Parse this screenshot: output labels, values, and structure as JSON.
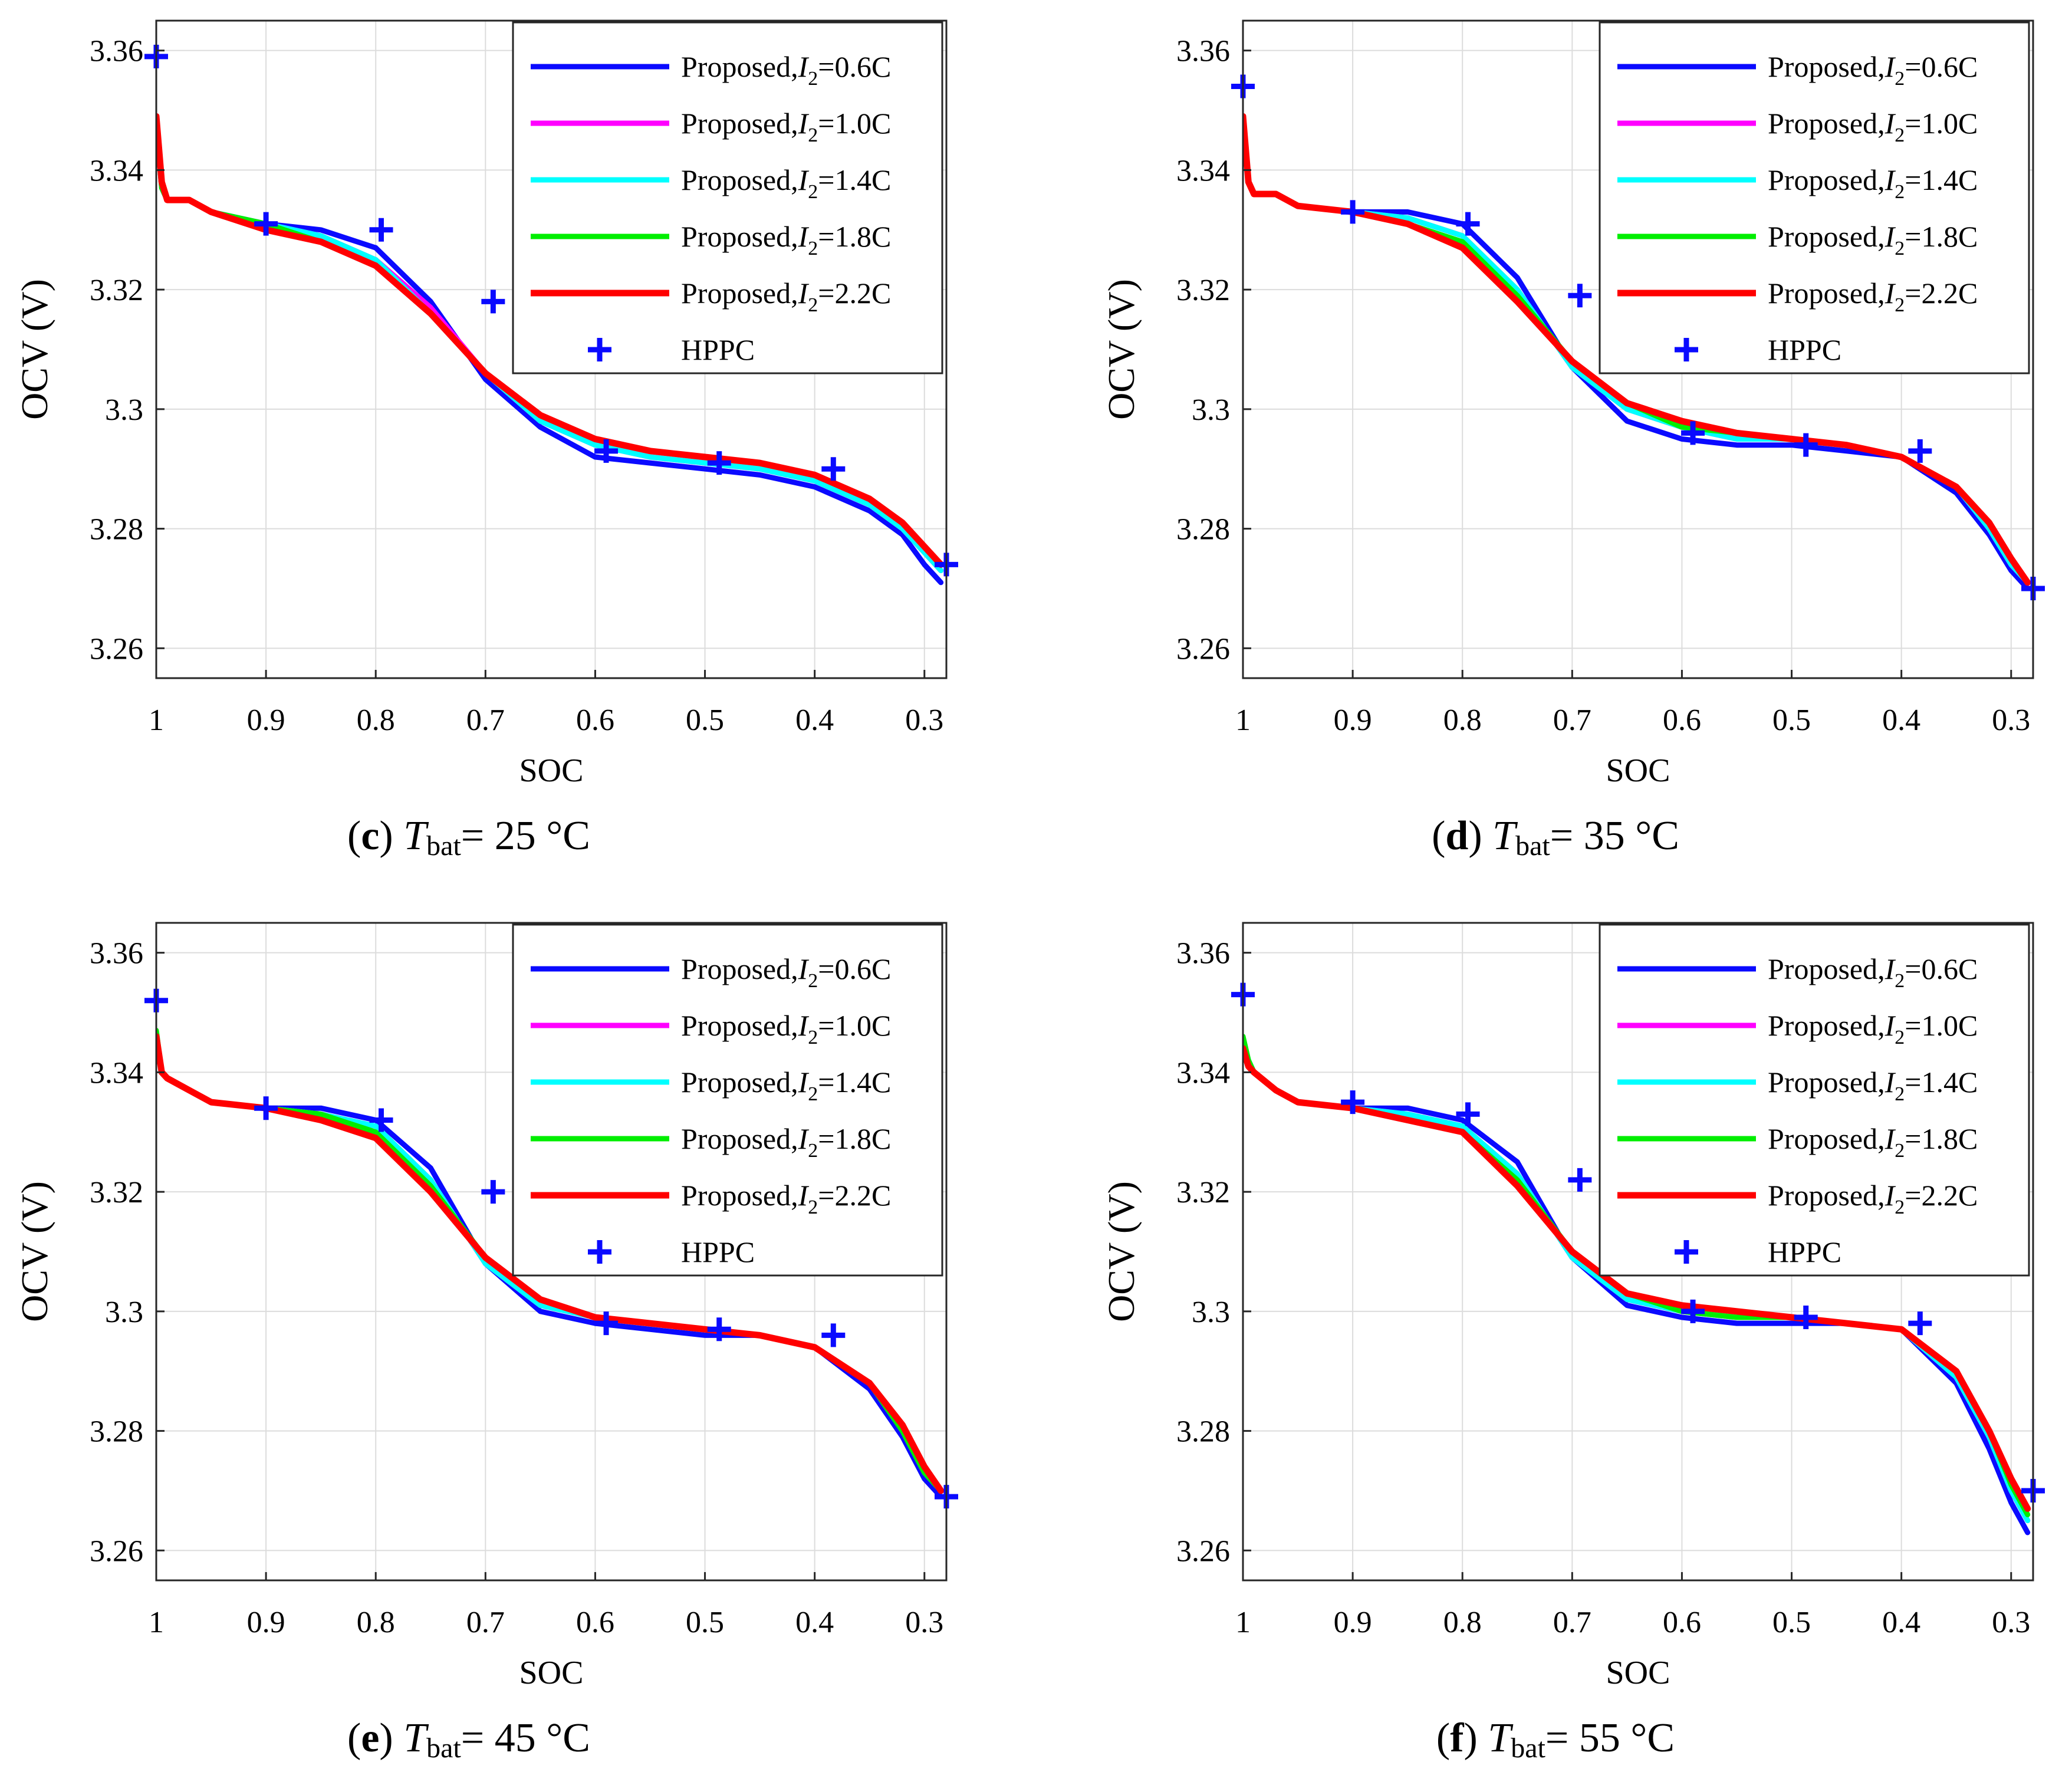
{
  "chart_data": [
    {
      "panel_letter": "c",
      "caption_var": "T",
      "caption_sub": "bat",
      "caption_value": "= 25 °C",
      "type": "line",
      "xlabel": "SOC",
      "ylabel": "OCV (V)",
      "xlim": [
        1.0,
        0.28
      ],
      "ylim": [
        3.255,
        3.365
      ],
      "xticks": [
        1,
        0.9,
        0.8,
        0.7,
        0.6,
        0.5,
        0.4,
        0.3
      ],
      "xtick_labels": [
        "1",
        "0.9",
        "0.8",
        "0.7",
        "0.6",
        "0.5",
        "0.4",
        "0.3"
      ],
      "yticks": [
        3.26,
        3.28,
        3.3,
        3.32,
        3.34,
        3.36
      ],
      "ytick_labels": [
        "3.26",
        "3.28",
        "3.3",
        "3.32",
        "3.34",
        "3.36"
      ],
      "grid": true,
      "legend_position": "top-right",
      "x": [
        1.0,
        0.995,
        0.99,
        0.97,
        0.95,
        0.9,
        0.85,
        0.8,
        0.75,
        0.7,
        0.65,
        0.6,
        0.55,
        0.5,
        0.45,
        0.4,
        0.35,
        0.32,
        0.3,
        0.285
      ],
      "series": [
        {
          "name": "Proposed,",
          "current": "=0.6C",
          "color": "#0a0aff",
          "values": [
            3.348,
            3.337,
            3.335,
            3.335,
            3.333,
            3.331,
            3.33,
            3.327,
            3.318,
            3.305,
            3.297,
            3.292,
            3.291,
            3.29,
            3.289,
            3.287,
            3.283,
            3.279,
            3.274,
            3.271
          ]
        },
        {
          "name": "Proposed,",
          "current": "=1.0C",
          "color": "#ff00ff",
          "values": [
            3.348,
            3.337,
            3.335,
            3.335,
            3.333,
            3.331,
            3.329,
            3.325,
            3.317,
            3.306,
            3.298,
            3.294,
            3.292,
            3.291,
            3.29,
            3.288,
            3.284,
            3.28,
            3.276,
            3.273
          ]
        },
        {
          "name": "Proposed,",
          "current": "=1.4C",
          "color": "#00ffff",
          "values": [
            3.348,
            3.337,
            3.335,
            3.335,
            3.333,
            3.331,
            3.329,
            3.325,
            3.316,
            3.306,
            3.298,
            3.294,
            3.292,
            3.291,
            3.29,
            3.288,
            3.284,
            3.28,
            3.276,
            3.273
          ]
        },
        {
          "name": "Proposed,",
          "current": "=1.8C",
          "color": "#00ee00",
          "values": [
            3.348,
            3.337,
            3.335,
            3.335,
            3.333,
            3.331,
            3.328,
            3.324,
            3.316,
            3.306,
            3.299,
            3.295,
            3.293,
            3.292,
            3.291,
            3.289,
            3.285,
            3.281,
            3.277,
            3.274
          ]
        },
        {
          "name": "Proposed,",
          "current": "=2.2C",
          "color": "#ff0000",
          "values": [
            3.349,
            3.338,
            3.335,
            3.335,
            3.333,
            3.33,
            3.328,
            3.324,
            3.316,
            3.306,
            3.299,
            3.295,
            3.293,
            3.292,
            3.291,
            3.289,
            3.285,
            3.281,
            3.277,
            3.274
          ]
        }
      ],
      "markers": {
        "name": "HPPC",
        "color": "#0a0aff",
        "x": [
          1.0,
          0.9,
          0.795,
          0.693,
          0.59,
          0.487,
          0.383,
          0.28
        ],
        "y": [
          3.359,
          3.331,
          3.33,
          3.318,
          3.293,
          3.291,
          3.29,
          3.274
        ]
      }
    },
    {
      "panel_letter": "d",
      "caption_var": "T",
      "caption_sub": "bat",
      "caption_value": "= 35 °C",
      "type": "line",
      "xlabel": "SOC",
      "ylabel": "OCV (V)",
      "xlim": [
        1.0,
        0.28
      ],
      "ylim": [
        3.255,
        3.365
      ],
      "xticks": [
        1,
        0.9,
        0.8,
        0.7,
        0.6,
        0.5,
        0.4,
        0.3
      ],
      "xtick_labels": [
        "1",
        "0.9",
        "0.8",
        "0.7",
        "0.6",
        "0.5",
        "0.4",
        "0.3"
      ],
      "yticks": [
        3.26,
        3.28,
        3.3,
        3.32,
        3.34,
        3.36
      ],
      "ytick_labels": [
        "3.26",
        "3.28",
        "3.3",
        "3.32",
        "3.34",
        "3.36"
      ],
      "grid": true,
      "legend_position": "top-right",
      "x": [
        1.0,
        0.995,
        0.99,
        0.97,
        0.95,
        0.9,
        0.85,
        0.8,
        0.75,
        0.7,
        0.65,
        0.6,
        0.55,
        0.5,
        0.45,
        0.4,
        0.35,
        0.32,
        0.3,
        0.285
      ],
      "series": [
        {
          "name": "Proposed,",
          "current": "=0.6C",
          "color": "#0a0aff",
          "values": [
            3.348,
            3.338,
            3.336,
            3.336,
            3.334,
            3.333,
            3.333,
            3.331,
            3.322,
            3.307,
            3.298,
            3.295,
            3.294,
            3.294,
            3.293,
            3.292,
            3.286,
            3.279,
            3.273,
            3.27
          ]
        },
        {
          "name": "Proposed,",
          "current": "=1.0C",
          "color": "#ff00ff",
          "values": [
            3.348,
            3.338,
            3.336,
            3.336,
            3.334,
            3.333,
            3.332,
            3.329,
            3.32,
            3.307,
            3.3,
            3.297,
            3.295,
            3.295,
            3.294,
            3.292,
            3.287,
            3.28,
            3.274,
            3.271
          ]
        },
        {
          "name": "Proposed,",
          "current": "=1.4C",
          "color": "#00ffff",
          "values": [
            3.348,
            3.338,
            3.336,
            3.336,
            3.334,
            3.333,
            3.332,
            3.329,
            3.32,
            3.307,
            3.3,
            3.297,
            3.295,
            3.295,
            3.294,
            3.292,
            3.287,
            3.28,
            3.274,
            3.271
          ]
        },
        {
          "name": "Proposed,",
          "current": "=1.8C",
          "color": "#00ee00",
          "values": [
            3.348,
            3.338,
            3.336,
            3.336,
            3.334,
            3.333,
            3.331,
            3.328,
            3.319,
            3.308,
            3.301,
            3.297,
            3.296,
            3.295,
            3.294,
            3.292,
            3.287,
            3.281,
            3.275,
            3.271
          ]
        },
        {
          "name": "Proposed,",
          "current": "=2.2C",
          "color": "#ff0000",
          "values": [
            3.349,
            3.338,
            3.336,
            3.336,
            3.334,
            3.333,
            3.331,
            3.327,
            3.318,
            3.308,
            3.301,
            3.298,
            3.296,
            3.295,
            3.294,
            3.292,
            3.287,
            3.281,
            3.275,
            3.271
          ]
        }
      ],
      "markers": {
        "name": "HPPC",
        "color": "#0a0aff",
        "x": [
          1.0,
          0.9,
          0.795,
          0.693,
          0.59,
          0.487,
          0.383,
          0.28
        ],
        "y": [
          3.354,
          3.333,
          3.331,
          3.319,
          3.296,
          3.294,
          3.293,
          3.27
        ]
      }
    },
    {
      "panel_letter": "e",
      "caption_var": "T",
      "caption_sub": "bat",
      "caption_value": "= 45 °C",
      "type": "line",
      "xlabel": "SOC",
      "ylabel": "OCV (V)",
      "xlim": [
        1.0,
        0.28
      ],
      "ylim": [
        3.255,
        3.365
      ],
      "xticks": [
        1,
        0.9,
        0.8,
        0.7,
        0.6,
        0.5,
        0.4,
        0.3
      ],
      "xtick_labels": [
        "1",
        "0.9",
        "0.8",
        "0.7",
        "0.6",
        "0.5",
        "0.4",
        "0.3"
      ],
      "yticks": [
        3.26,
        3.28,
        3.3,
        3.32,
        3.34,
        3.36
      ],
      "ytick_labels": [
        "3.26",
        "3.28",
        "3.3",
        "3.32",
        "3.34",
        "3.36"
      ],
      "grid": true,
      "legend_position": "top-right",
      "x": [
        1.0,
        0.995,
        0.99,
        0.97,
        0.95,
        0.9,
        0.85,
        0.8,
        0.75,
        0.7,
        0.65,
        0.6,
        0.55,
        0.5,
        0.45,
        0.4,
        0.35,
        0.32,
        0.3,
        0.285
      ],
      "series": [
        {
          "name": "Proposed,",
          "current": "=0.6C",
          "color": "#0a0aff",
          "values": [
            3.346,
            3.34,
            3.339,
            3.337,
            3.335,
            3.334,
            3.334,
            3.332,
            3.324,
            3.308,
            3.3,
            3.298,
            3.297,
            3.296,
            3.296,
            3.294,
            3.287,
            3.279,
            3.272,
            3.269
          ]
        },
        {
          "name": "Proposed,",
          "current": "=1.0C",
          "color": "#ff00ff",
          "values": [
            3.346,
            3.34,
            3.339,
            3.337,
            3.335,
            3.334,
            3.333,
            3.331,
            3.322,
            3.308,
            3.301,
            3.299,
            3.298,
            3.297,
            3.296,
            3.294,
            3.288,
            3.28,
            3.273,
            3.27
          ]
        },
        {
          "name": "Proposed,",
          "current": "=1.4C",
          "color": "#00ffff",
          "values": [
            3.346,
            3.34,
            3.339,
            3.337,
            3.335,
            3.334,
            3.333,
            3.331,
            3.322,
            3.308,
            3.301,
            3.299,
            3.298,
            3.297,
            3.296,
            3.294,
            3.288,
            3.28,
            3.273,
            3.27
          ]
        },
        {
          "name": "Proposed,",
          "current": "=1.8C",
          "color": "#00ee00",
          "values": [
            3.347,
            3.34,
            3.339,
            3.337,
            3.335,
            3.334,
            3.333,
            3.33,
            3.321,
            3.309,
            3.302,
            3.299,
            3.298,
            3.297,
            3.296,
            3.294,
            3.288,
            3.28,
            3.273,
            3.27
          ]
        },
        {
          "name": "Proposed,",
          "current": "=2.2C",
          "color": "#ff0000",
          "values": [
            3.346,
            3.34,
            3.339,
            3.337,
            3.335,
            3.334,
            3.332,
            3.329,
            3.32,
            3.309,
            3.302,
            3.299,
            3.298,
            3.297,
            3.296,
            3.294,
            3.288,
            3.281,
            3.274,
            3.27
          ]
        }
      ],
      "markers": {
        "name": "HPPC",
        "color": "#0a0aff",
        "x": [
          1.0,
          0.9,
          0.795,
          0.693,
          0.59,
          0.487,
          0.383,
          0.28
        ],
        "y": [
          3.352,
          3.334,
          3.332,
          3.32,
          3.298,
          3.297,
          3.296,
          3.269
        ]
      }
    },
    {
      "panel_letter": "f",
      "caption_var": "T",
      "caption_sub": "bat",
      "caption_value": "= 55 °C",
      "type": "line",
      "xlabel": "SOC",
      "ylabel": "OCV (V)",
      "xlim": [
        1.0,
        0.28
      ],
      "ylim": [
        3.255,
        3.365
      ],
      "xticks": [
        1,
        0.9,
        0.8,
        0.7,
        0.6,
        0.5,
        0.4,
        0.3
      ],
      "xtick_labels": [
        "1",
        "0.9",
        "0.8",
        "0.7",
        "0.6",
        "0.5",
        "0.4",
        "0.3"
      ],
      "yticks": [
        3.26,
        3.28,
        3.3,
        3.32,
        3.34,
        3.36
      ],
      "ytick_labels": [
        "3.26",
        "3.28",
        "3.3",
        "3.32",
        "3.34",
        "3.36"
      ],
      "grid": true,
      "legend_position": "top-right",
      "x": [
        1.0,
        0.995,
        0.99,
        0.97,
        0.95,
        0.9,
        0.85,
        0.8,
        0.75,
        0.7,
        0.65,
        0.6,
        0.55,
        0.5,
        0.45,
        0.4,
        0.35,
        0.32,
        0.3,
        0.285
      ],
      "series": [
        {
          "name": "Proposed,",
          "current": "=0.6C",
          "color": "#0a0aff",
          "values": [
            3.345,
            3.342,
            3.34,
            3.337,
            3.335,
            3.334,
            3.334,
            3.332,
            3.325,
            3.309,
            3.301,
            3.299,
            3.298,
            3.298,
            3.298,
            3.297,
            3.288,
            3.277,
            3.268,
            3.263
          ]
        },
        {
          "name": "Proposed,",
          "current": "=1.0C",
          "color": "#ff00ff",
          "values": [
            3.345,
            3.342,
            3.34,
            3.337,
            3.335,
            3.334,
            3.333,
            3.331,
            3.323,
            3.309,
            3.302,
            3.3,
            3.299,
            3.299,
            3.298,
            3.297,
            3.289,
            3.279,
            3.27,
            3.265
          ]
        },
        {
          "name": "Proposed,",
          "current": "=1.4C",
          "color": "#00ffff",
          "values": [
            3.345,
            3.342,
            3.34,
            3.337,
            3.335,
            3.334,
            3.333,
            3.331,
            3.323,
            3.309,
            3.302,
            3.3,
            3.299,
            3.299,
            3.298,
            3.297,
            3.289,
            3.279,
            3.27,
            3.265
          ]
        },
        {
          "name": "Proposed,",
          "current": "=1.8C",
          "color": "#00ee00",
          "values": [
            3.346,
            3.342,
            3.34,
            3.337,
            3.335,
            3.334,
            3.332,
            3.33,
            3.322,
            3.31,
            3.303,
            3.3,
            3.299,
            3.299,
            3.298,
            3.297,
            3.29,
            3.28,
            3.271,
            3.266
          ]
        },
        {
          "name": "Proposed,",
          "current": "=2.2C",
          "color": "#ff0000",
          "values": [
            3.344,
            3.341,
            3.34,
            3.337,
            3.335,
            3.334,
            3.332,
            3.33,
            3.321,
            3.31,
            3.303,
            3.301,
            3.3,
            3.299,
            3.298,
            3.297,
            3.29,
            3.28,
            3.272,
            3.267
          ]
        }
      ],
      "markers": {
        "name": "HPPC",
        "color": "#0a0aff",
        "x": [
          1.0,
          0.9,
          0.795,
          0.693,
          0.59,
          0.487,
          0.383,
          0.28
        ],
        "y": [
          3.353,
          3.335,
          3.333,
          3.322,
          3.3,
          3.299,
          3.298,
          3.27
        ]
      }
    }
  ]
}
